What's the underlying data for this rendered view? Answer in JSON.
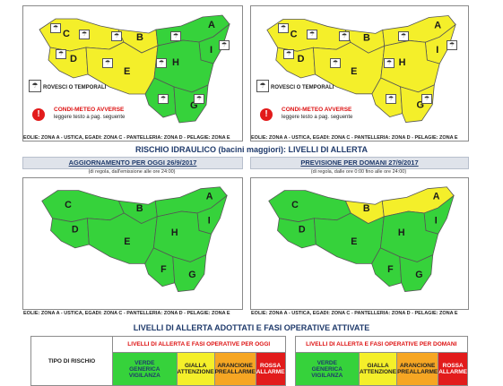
{
  "zones": {
    "A": "A",
    "B": "B",
    "C": "C",
    "D": "D",
    "E": "E",
    "F": "F",
    "G": "G",
    "H": "H",
    "I": "I"
  },
  "colors": {
    "yellow": "#f4ef2a",
    "green": "#36d23b",
    "orange": "#f6a623",
    "red": "#e21b1b",
    "header_bg": "#dfe3ea",
    "title_blue": "#1f3a6b"
  },
  "top_maps": {
    "legend_label": "ROVESCI O TEMPORALI",
    "warning_title": "CONDI-METEO AVVERSE",
    "warning_sub": "leggere testo a pag. seguente",
    "footer": "EOLIE: ZONA A - USTICA, EGADI: ZONA C - PANTELLERIA: ZONA D - PELAGIE: ZONA E"
  },
  "hydro": {
    "title": "RISCHIO IDRAULICO (bacini maggiori): LIVELLI DI ALLERTA",
    "left_banner": "AGGIORNAMENTO PER OGGI 26/9/2017",
    "left_sub": "(di regola, dall'emissione alle ore 24:00)",
    "right_banner": "PREVISIONE PER DOMANI 27/9/2017",
    "right_sub": "(di regola, dalle ore 0:00 fino alle ore 24:00)",
    "footer": "EOLIE: ZONA A - USTICA, EGADI: ZONA C - PANTELLERIA: ZONA D - PELAGIE: ZONA E"
  },
  "levels_table": {
    "title": "LIVELLI DI ALLERTA ADOTTATI E FASI OPERATIVE ATTIVATE",
    "row_header": "TIPO DI RISCHIO",
    "today_header": "LIVELLI DI ALLERTA E FASI OPERATIVE PER OGGI",
    "tomorrow_header": "LIVELLI DI ALLERTA E FASI OPERATIVE PER DOMANI",
    "cols": [
      {
        "level": "VERDE",
        "phase": "GENERICA VIGILANZA"
      },
      {
        "level": "GIALLA",
        "phase": "ATTENZIONE"
      },
      {
        "level": "ARANCIONE",
        "phase": "PREALLARME"
      },
      {
        "level": "ROSSA",
        "phase": "ALLARME"
      }
    ]
  }
}
